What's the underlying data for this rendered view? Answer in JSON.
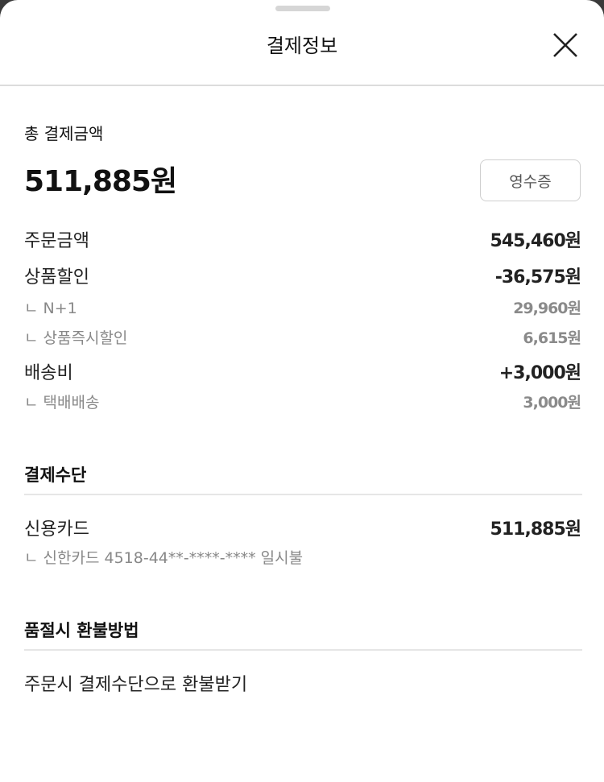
{
  "header": {
    "title": "결제정보",
    "close_icon": "close-x-icon"
  },
  "total": {
    "label": "총 결제금액",
    "amount": "511,885원",
    "receipt_button": "영수증"
  },
  "breakdown": [
    {
      "label": "주문금액",
      "value": "545,460원",
      "level": "main"
    },
    {
      "label": "상품할인",
      "value": "-36,575원",
      "level": "main"
    },
    {
      "label": "ㄴ N+1",
      "value": "29,960원",
      "level": "sub"
    },
    {
      "label": "ㄴ 상품즉시할인",
      "value": "6,615원",
      "level": "sub"
    },
    {
      "label": "배송비",
      "value": "+3,000원",
      "level": "main"
    },
    {
      "label": "ㄴ 택배배송",
      "value": "3,000원",
      "level": "sub"
    }
  ],
  "payment_method": {
    "title": "결제수단",
    "method": "신용카드",
    "amount": "511,885원",
    "detail": "ㄴ 신한카드  4518-44**-****-**** 일시불"
  },
  "refund": {
    "title": "품절시 환불방법",
    "method": "주문시 결제수단으로 환불받기"
  }
}
